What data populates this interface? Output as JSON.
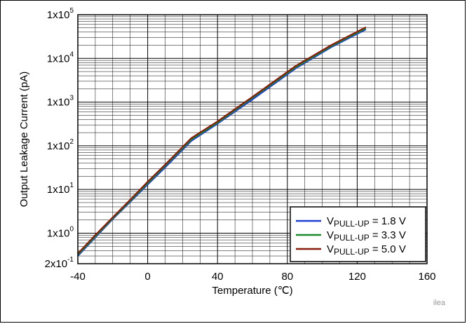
{
  "chart_data": {
    "type": "line",
    "title": "",
    "xlabel": "Temperature (℃)",
    "ylabel": "Output Leakage Current (pA)",
    "xlim": [
      -40,
      160
    ],
    "ylim": [
      0.2,
      100000
    ],
    "yscale": "log",
    "grid": true,
    "legend_position": "bottom-right",
    "x_ticks": [
      -40,
      0,
      40,
      80,
      120,
      160
    ],
    "x_tick_labels": [
      "-40",
      "0",
      "40",
      "80",
      "120",
      "160"
    ],
    "y_ticks": [
      {
        "value": 0.2,
        "mant": "2x10",
        "exp": "-1"
      },
      {
        "value": 1,
        "mant": "1x10",
        "exp": "0"
      },
      {
        "value": 10,
        "mant": "1x10",
        "exp": "1"
      },
      {
        "value": 100,
        "mant": "1x10",
        "exp": "2"
      },
      {
        "value": 1000,
        "mant": "1x10",
        "exp": "3"
      },
      {
        "value": 10000,
        "mant": "1x10",
        "exp": "4"
      },
      {
        "value": 100000,
        "mant": "1x10",
        "exp": "5"
      }
    ],
    "series": [
      {
        "name_main": "V",
        "name_sub": "PULL-UP",
        "name_rest": " = 1.8 V",
        "color": "#1f3fd0",
        "x": [
          -40,
          -30,
          -20,
          -10,
          0,
          10,
          25,
          40,
          60,
          85,
          105,
          125
        ],
        "y": [
          0.3,
          0.8,
          2.1,
          5.2,
          13,
          32,
          130,
          320,
          1150,
          6000,
          18000,
          46000
        ]
      },
      {
        "name_main": "V",
        "name_sub": "PULL-UP",
        "name_rest": " = 3.3 V",
        "color": "#1a8a2a",
        "x": [
          -40,
          -30,
          -20,
          -10,
          0,
          10,
          25,
          40,
          60,
          85,
          105,
          125
        ],
        "y": [
          0.32,
          0.85,
          2.2,
          5.5,
          14,
          35,
          140,
          340,
          1250,
          6400,
          19000,
          49000
        ]
      },
      {
        "name_main": "V",
        "name_sub": "PULL-UP",
        "name_rest": " = 5.0 V",
        "color": "#8a1a0a",
        "x": [
          -40,
          -30,
          -20,
          -10,
          0,
          10,
          25,
          40,
          60,
          85,
          105,
          125
        ],
        "y": [
          0.34,
          0.9,
          2.3,
          5.8,
          15,
          37,
          150,
          360,
          1320,
          6800,
          20000,
          52000
        ]
      }
    ]
  },
  "watermark": "ilea"
}
